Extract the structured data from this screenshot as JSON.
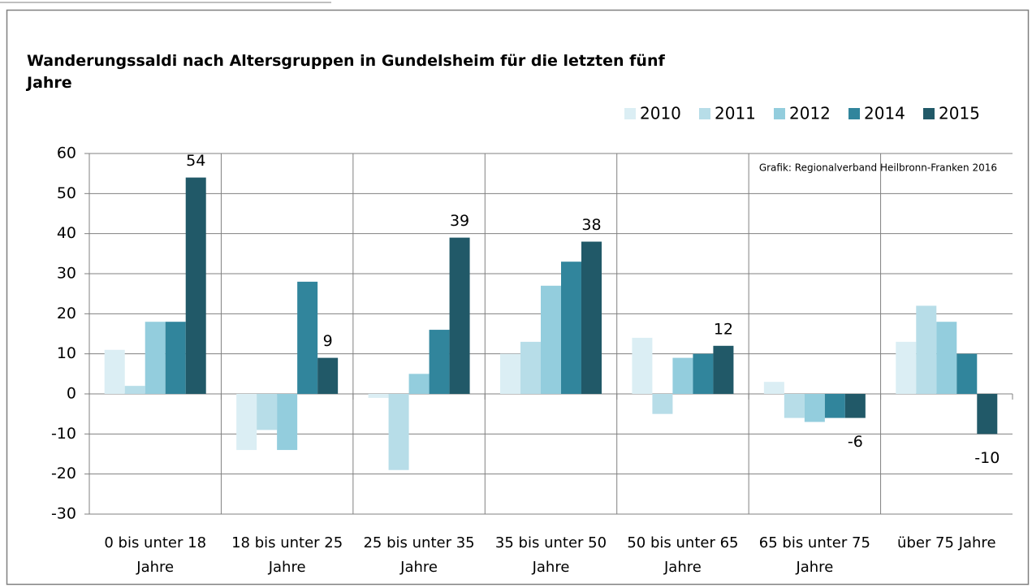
{
  "chart_data": {
    "type": "bar",
    "title": "Wanderungssaldi nach Altersgruppen in Gundelsheim für die letzten fünf Jahre",
    "annotation": "Grafik: Regionalverband Heilbronn-Franken 2016",
    "categories": [
      "0 bis unter 18 Jahre",
      "18 bis unter 25 Jahre",
      "25 bis unter 35 Jahre",
      "35 bis unter 50 Jahre",
      "50 bis unter 65 Jahre",
      "65 bis unter 75 Jahre",
      "über 75 Jahre"
    ],
    "series": [
      {
        "name": "2010",
        "color": "#dbeef4",
        "values": [
          11,
          -14,
          -1,
          10,
          14,
          3,
          13
        ]
      },
      {
        "name": "2011",
        "color": "#b7dde8",
        "values": [
          2,
          -9,
          -19,
          13,
          -5,
          -6,
          22
        ]
      },
      {
        "name": "2012",
        "color": "#93cddd",
        "values": [
          18,
          -14,
          5,
          27,
          9,
          -7,
          18
        ]
      },
      {
        "name": "2014",
        "color": "#31859c",
        "values": [
          18,
          28,
          16,
          33,
          10,
          -6,
          10
        ]
      },
      {
        "name": "2015",
        "color": "#215968",
        "values": [
          54,
          9,
          39,
          38,
          12,
          -6,
          -10
        ],
        "data_labels": true
      }
    ],
    "ylim": [
      -30,
      60
    ],
    "yticks": [
      -30,
      -20,
      -10,
      0,
      10,
      20,
      30,
      40,
      50,
      60
    ],
    "grid": true,
    "legend": "top-right"
  }
}
